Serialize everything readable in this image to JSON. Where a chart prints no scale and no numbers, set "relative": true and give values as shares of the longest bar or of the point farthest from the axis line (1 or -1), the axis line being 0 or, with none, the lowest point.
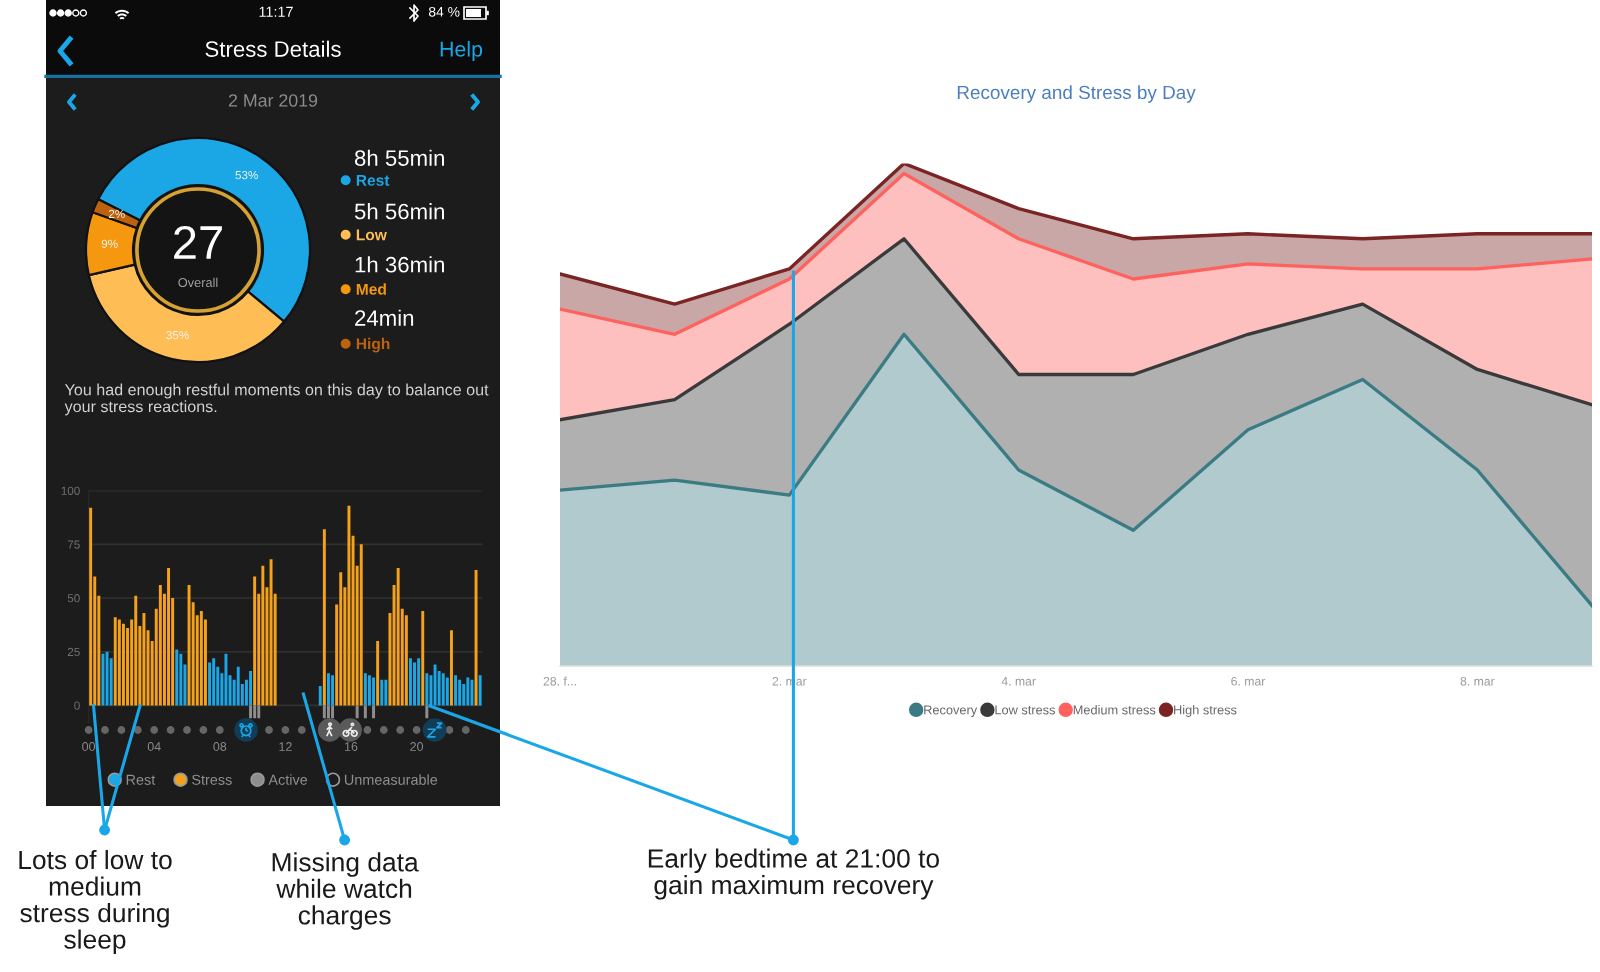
{
  "chart_data": [
    {
      "type": "donut",
      "title": "Stress Details",
      "subtitle": "2 Mar 2019",
      "categories": [
        "Rest",
        "Low",
        "Med",
        "High"
      ],
      "values": [
        53,
        35,
        9,
        2
      ],
      "colors": [
        "#1ba6e6",
        "#ffbe55",
        "#f5980f",
        "#bd630e"
      ],
      "value_labels": [
        "53%",
        "35%",
        "9%",
        "2%"
      ],
      "legend": "right",
      "annotations": [
        "11:17",
        "84 %",
        "Help",
        "8h 55min",
        "5h 56min",
        "1h 36min",
        "24min",
        "27",
        "Overall",
        "You had enough restful moments on this day to balance out your stress reactions."
      ]
    },
    {
      "type": "bar",
      "xlim": [
        0,
        24
      ],
      "xticks": [
        {
          "value": 0,
          "label": "00"
        },
        {
          "value": 4,
          "label": "04"
        },
        {
          "value": 8,
          "label": "08"
        },
        {
          "value": 12,
          "label": "12"
        },
        {
          "value": 16,
          "label": "16"
        },
        {
          "value": 20,
          "label": "20"
        }
      ],
      "ylim": [
        -8,
        100
      ],
      "yticks": [
        0,
        25,
        50,
        75,
        100
      ],
      "grid": "y",
      "legend": "bottom",
      "series": [
        {
          "name": "Rest",
          "color": "#1ba6e6",
          "x": [
            0.875,
            1.125,
            1.375,
            5.375,
            5.625,
            5.875,
            7.375,
            7.625,
            7.875,
            8.125,
            8.375,
            8.625,
            8.875,
            9.125,
            9.375,
            9.625,
            9.875,
            14.125,
            14.625,
            14.875,
            16.875,
            17.125,
            17.375,
            17.875,
            18.125,
            19.625,
            19.875,
            20.125,
            20.625,
            20.875,
            21.125,
            21.375,
            21.625,
            21.875,
            22.375,
            22.625,
            22.875,
            23.125,
            23.375,
            23.875
          ],
          "values": [
            24,
            25,
            22,
            26,
            24,
            19,
            20,
            22,
            18,
            15,
            24,
            14,
            12,
            18,
            10,
            12,
            16,
            9,
            15,
            14,
            15,
            14,
            13,
            12,
            12,
            22,
            20,
            22,
            15,
            14,
            19,
            16,
            15,
            13,
            14,
            12,
            10,
            13,
            12,
            14
          ]
        },
        {
          "name": "Stress",
          "color": "#f5a21a",
          "x": [
            0.125,
            0.375,
            0.625,
            1.625,
            1.875,
            2.125,
            2.375,
            2.625,
            2.875,
            3.125,
            3.375,
            3.625,
            3.875,
            4.125,
            4.375,
            4.625,
            4.875,
            5.125,
            6.125,
            6.375,
            6.625,
            6.875,
            7.125,
            10.125,
            10.375,
            10.625,
            10.875,
            11.125,
            11.375,
            14.375,
            15.125,
            15.375,
            15.625,
            15.875,
            16.125,
            16.375,
            16.625,
            17.625,
            18.375,
            18.625,
            18.875,
            19.125,
            19.375,
            20.375,
            22.125,
            23.625
          ],
          "values": [
            92,
            60,
            51,
            41,
            40,
            38,
            36,
            40,
            51,
            37,
            43,
            35,
            30,
            45,
            56,
            52,
            64,
            50,
            56,
            48,
            42,
            44,
            40,
            60,
            52,
            65,
            55,
            68,
            52,
            82,
            47,
            62,
            55,
            93,
            79,
            65,
            75,
            30,
            43,
            56,
            64,
            45,
            42,
            44,
            35,
            63
          ]
        },
        {
          "name": "Active",
          "color": "#8d8d8d",
          "x": [
            9.875,
            10.125,
            10.375,
            14.375,
            14.625,
            14.875,
            16.375,
            16.875,
            17.375,
            20.625
          ],
          "values": [
            -6,
            -6,
            -6,
            -6,
            -6,
            -6,
            -6,
            -6,
            -6,
            -6
          ]
        },
        {
          "name": "Unmeasurable",
          "color": "#1c1c1c"
        }
      ],
      "annotations": [
        {
          "text": "Lots of low to medium stress during sleep",
          "x": 0.3,
          "y": 0
        },
        "Missing data while watch charges",
        "Early bedtime at 21:00 to gain maximum recovery"
      ]
    },
    {
      "type": "area",
      "stacked": true,
      "relative": true,
      "title": "Recovery and Stress by Day",
      "categories": [
        "28. f...",
        null,
        "2. mar",
        null,
        "4. mar",
        null,
        "6. mar",
        null,
        "8. mar",
        null
      ],
      "legend": "bottom",
      "series": [
        {
          "name": "Recovery",
          "color": "#3b7b83",
          "values": [
            0.35,
            0.37,
            0.34,
            0.66,
            0.39,
            0.27,
            0.47,
            0.57,
            0.39,
            0.12
          ]
        },
        {
          "name": "Low stress",
          "color": "#3a3a3a",
          "values": [
            0.14,
            0.16,
            0.34,
            0.19,
            0.19,
            0.31,
            0.19,
            0.15,
            0.2,
            0.4
          ]
        },
        {
          "name": "Medium stress",
          "color": "#fd625e",
          "values": [
            0.22,
            0.13,
            0.09,
            0.13,
            0.27,
            0.19,
            0.14,
            0.07,
            0.2,
            0.29
          ]
        },
        {
          "name": "High stress",
          "color": "#7b2424",
          "values": [
            0.07,
            0.06,
            0.02,
            0.02,
            0.06,
            0.08,
            0.06,
            0.06,
            0.07,
            0.05
          ]
        }
      ]
    }
  ]
}
